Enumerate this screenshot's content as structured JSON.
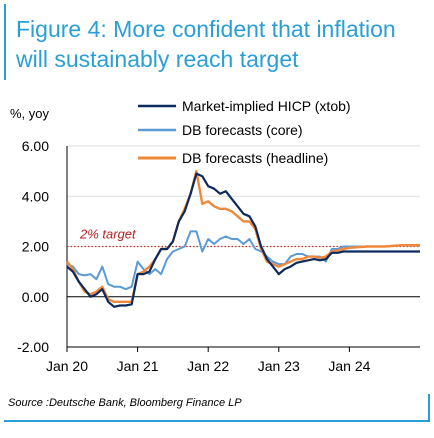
{
  "figure": {
    "title": "Figure 4: More confident that inflation will sustainably reach target",
    "source": "Source :Deutsche Bank, Bloomberg Finance LP"
  },
  "colors": {
    "accent": "#2a9fd6",
    "market": "#0d2a5c",
    "core": "#5b9bd5",
    "headline": "#f0883a",
    "target": "#c0392b"
  },
  "chart_data": {
    "type": "line",
    "unit_label": "%, yoy",
    "ylim": [
      -2,
      6
    ],
    "yticks": [
      "6.00",
      "4.00",
      "2.00",
      "0.00",
      "-2.00"
    ],
    "ytick_values": [
      6,
      4,
      2,
      0,
      -2
    ],
    "xlim": [
      2020.0,
      2025.0
    ],
    "xticks": [
      "Jan 20",
      "Jan 21",
      "Jan 22",
      "Jan 23",
      "Jan 24"
    ],
    "xtick_values": [
      2020.0,
      2021.0,
      2022.0,
      2023.0,
      2024.0
    ],
    "legend_position": "top-right",
    "annotation": {
      "text": "2% target",
      "value": 2.0
    },
    "series": [
      {
        "name": "Market-implied HICP (xtob)",
        "key": "market",
        "x": [
          2020.0,
          2020.083,
          2020.167,
          2020.25,
          2020.333,
          2020.417,
          2020.5,
          2020.583,
          2020.667,
          2020.75,
          2020.833,
          2020.917,
          2021.0,
          2021.083,
          2021.167,
          2021.25,
          2021.333,
          2021.417,
          2021.5,
          2021.583,
          2021.667,
          2021.75,
          2021.833,
          2021.917,
          2022.0,
          2022.083,
          2022.167,
          2022.25,
          2022.333,
          2022.417,
          2022.5,
          2022.583,
          2022.667,
          2022.75,
          2022.833,
          2022.917,
          2023.0,
          2023.083,
          2023.167,
          2023.25,
          2023.333,
          2023.417,
          2023.5,
          2023.583,
          2023.667,
          2023.75,
          2023.833,
          2023.917,
          2024.0,
          2024.25,
          2024.5,
          2024.75,
          2025.0
        ],
        "y": [
          1.2,
          1.0,
          0.6,
          0.3,
          0.0,
          0.1,
          0.3,
          -0.2,
          -0.4,
          -0.35,
          -0.35,
          -0.3,
          0.9,
          0.9,
          1.0,
          1.5,
          1.9,
          1.9,
          2.2,
          3.0,
          3.4,
          4.1,
          4.9,
          4.8,
          4.4,
          4.3,
          4.1,
          4.2,
          3.9,
          3.6,
          3.3,
          3.2,
          2.8,
          2.0,
          1.5,
          1.2,
          0.9,
          1.1,
          1.2,
          1.35,
          1.4,
          1.45,
          1.5,
          1.45,
          1.5,
          1.75,
          1.75,
          1.8,
          1.8,
          1.8,
          1.8,
          1.8,
          1.8
        ]
      },
      {
        "name": "DB forecasts (core)",
        "key": "core",
        "x": [
          2020.0,
          2020.083,
          2020.167,
          2020.25,
          2020.333,
          2020.417,
          2020.5,
          2020.583,
          2020.667,
          2020.75,
          2020.833,
          2020.917,
          2021.0,
          2021.083,
          2021.167,
          2021.25,
          2021.333,
          2021.417,
          2021.5,
          2021.583,
          2021.667,
          2021.75,
          2021.833,
          2021.917,
          2022.0,
          2022.083,
          2022.167,
          2022.25,
          2022.333,
          2022.417,
          2022.5,
          2022.583,
          2022.667,
          2022.75,
          2022.833,
          2022.917,
          2023.0,
          2023.083,
          2023.167,
          2023.25,
          2023.333,
          2023.417,
          2023.5,
          2023.583,
          2023.667,
          2023.75,
          2023.833,
          2023.917,
          2024.0,
          2024.25,
          2024.5,
          2024.75,
          2025.0
        ],
        "y": [
          1.3,
          1.2,
          0.9,
          0.85,
          0.9,
          0.7,
          1.2,
          0.5,
          0.4,
          0.4,
          0.3,
          0.4,
          1.4,
          1.1,
          0.9,
          1.1,
          0.9,
          1.5,
          1.8,
          1.9,
          2.0,
          2.6,
          2.6,
          1.8,
          2.3,
          2.1,
          2.3,
          2.4,
          2.3,
          2.3,
          2.1,
          2.3,
          1.9,
          1.8,
          1.6,
          1.4,
          1.3,
          1.3,
          1.6,
          1.7,
          1.7,
          1.6,
          1.6,
          1.6,
          1.4,
          1.9,
          1.9,
          2.0,
          2.0,
          2.0,
          2.0,
          2.05,
          2.05
        ]
      },
      {
        "name": "DB forecasts (headline)",
        "key": "headline",
        "x": [
          2020.0,
          2020.083,
          2020.167,
          2020.25,
          2020.333,
          2020.417,
          2020.5,
          2020.583,
          2020.667,
          2020.75,
          2020.833,
          2020.917,
          2021.0,
          2021.083,
          2021.167,
          2021.25,
          2021.333,
          2021.417,
          2021.5,
          2021.583,
          2021.667,
          2021.75,
          2021.833,
          2021.917,
          2022.0,
          2022.083,
          2022.167,
          2022.25,
          2022.333,
          2022.417,
          2022.5,
          2022.583,
          2022.667,
          2022.75,
          2022.833,
          2022.917,
          2023.0,
          2023.083,
          2023.167,
          2023.25,
          2023.333,
          2023.417,
          2023.5,
          2023.583,
          2023.667,
          2023.75,
          2023.833,
          2023.917,
          2024.0,
          2024.25,
          2024.5,
          2024.75,
          2025.0
        ],
        "y": [
          1.4,
          1.1,
          0.6,
          0.2,
          0.1,
          0.2,
          0.4,
          -0.1,
          -0.2,
          -0.2,
          -0.2,
          -0.2,
          0.9,
          1.0,
          1.2,
          1.5,
          1.9,
          1.9,
          2.2,
          3.0,
          3.5,
          4.1,
          5.0,
          3.7,
          3.8,
          3.6,
          3.5,
          3.5,
          3.4,
          3.2,
          3.0,
          3.0,
          2.7,
          1.9,
          1.4,
          1.3,
          1.2,
          1.3,
          1.4,
          1.5,
          1.5,
          1.6,
          1.6,
          1.55,
          1.6,
          1.8,
          1.85,
          1.9,
          1.95,
          2.0,
          2.0,
          2.05,
          2.05
        ]
      }
    ]
  }
}
